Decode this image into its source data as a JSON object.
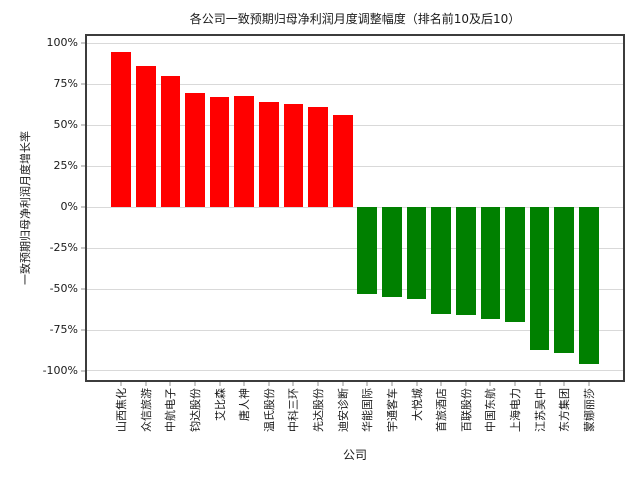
{
  "chart_data": {
    "type": "bar",
    "title": "各公司一致预期归母净利润月度调整幅度（排名前10及后10）",
    "xlabel": "公司",
    "ylabel": "一致预期归母净利润月度增长率",
    "categories": [
      "山西焦化",
      "众信旅游",
      "中航电子",
      "钧达股份",
      "艾比森",
      "唐人神",
      "温氏股份",
      "中科三环",
      "先达股份",
      "迪安诊断",
      "华能国际",
      "宇通客车",
      "大悦城",
      "首旅酒店",
      "百联股份",
      "中国东航",
      "上海电力",
      "江苏吴中",
      "东方集团",
      "蒙娜丽莎"
    ],
    "values": [
      95,
      86,
      80,
      70,
      67,
      68,
      64,
      63,
      61,
      56,
      -53,
      -55,
      -56,
      -65,
      -66,
      -68,
      -70,
      -87,
      -89,
      -96
    ],
    "units": "%",
    "yticks": [
      100,
      75,
      50,
      25,
      0,
      -25,
      -50,
      -75,
      -100
    ],
    "ytick_labels": [
      "100%",
      "75%",
      "50%",
      "25%",
      "0%",
      "-25%",
      "-50%",
      "-75%",
      "-100%"
    ],
    "ylim": [
      -105.5,
      104.5
    ],
    "grid": true,
    "legend": "none",
    "colors": {
      "positive": "#ff0000",
      "negative": "#008000"
    }
  },
  "page_colors": {
    "background": "#ffffff",
    "gridline": "#d9d9d9",
    "spine": "#3c3c3c",
    "text": "#1a1a1a"
  }
}
